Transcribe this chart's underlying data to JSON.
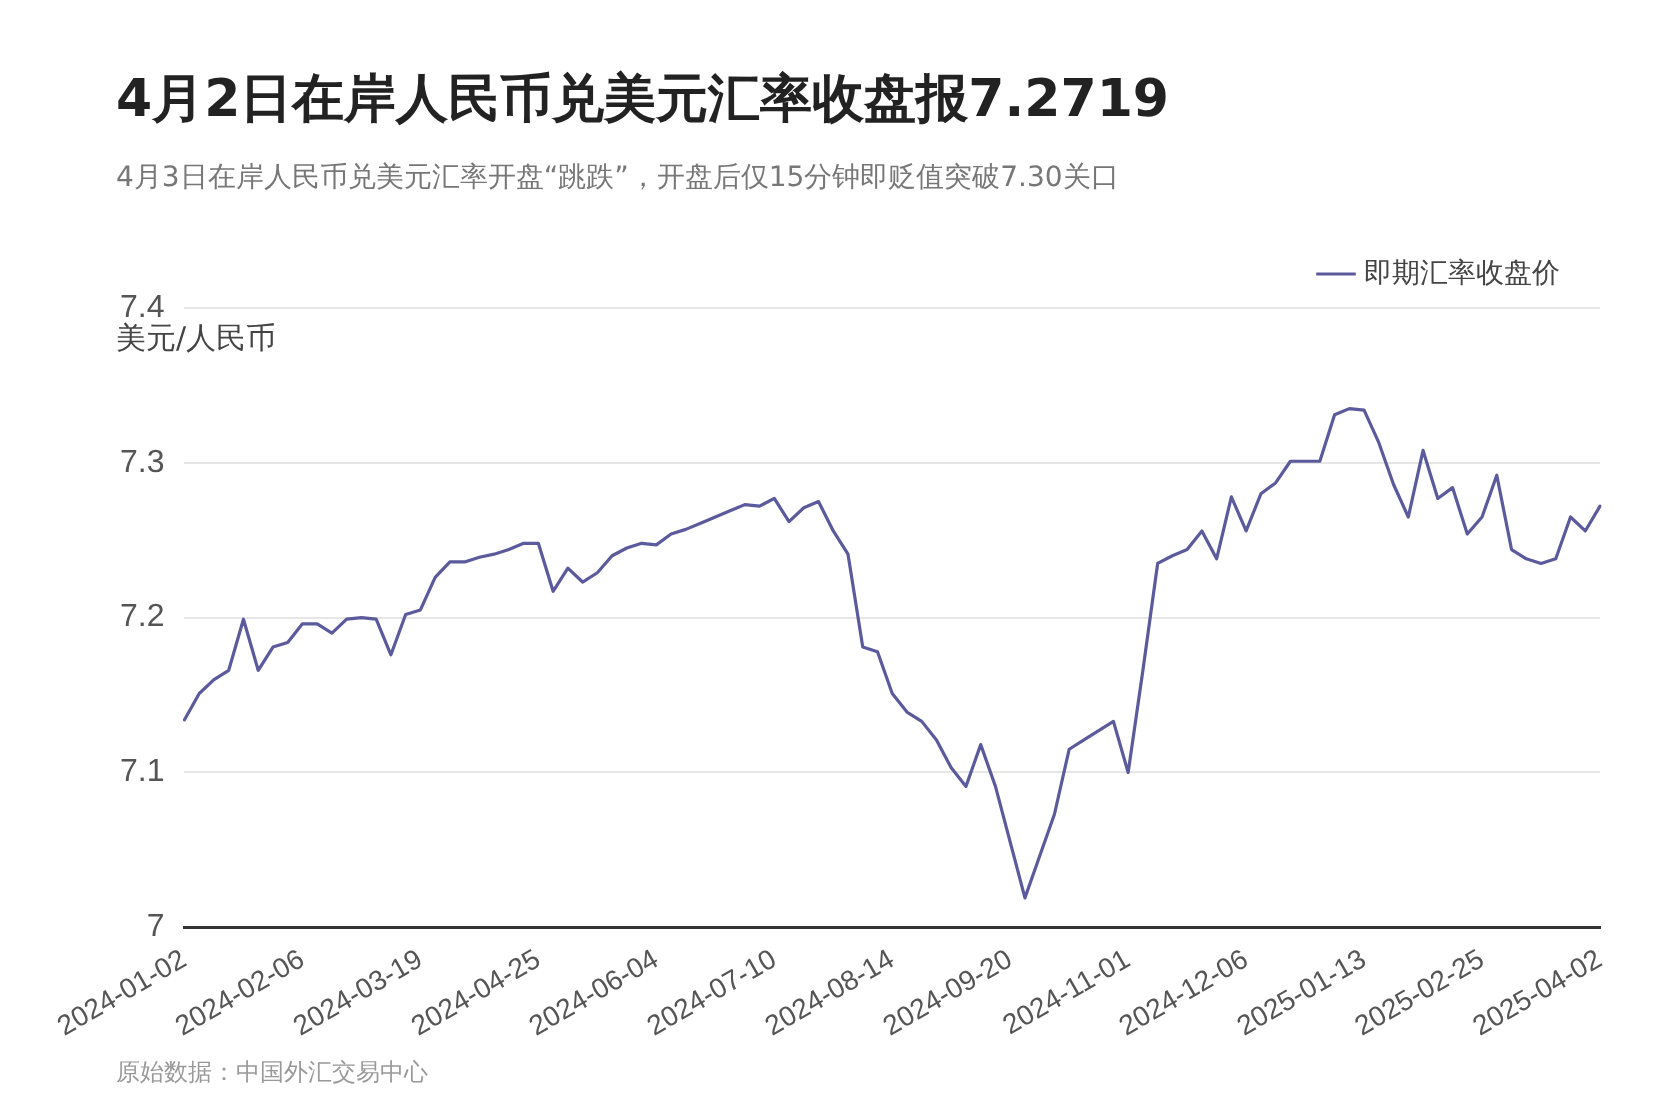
{
  "chart_data": {
    "type": "line",
    "title": "4月2日在岸人民币兑美元汇率收盘报7.2719",
    "subtitle": "4月3日在岸人民币兑美元汇率开盘“跳跌”，开盘后仅15分钟即贬值突破7.30关口",
    "ylabel": "美元/人民币",
    "annotations": [
      "原始数据：中国外汇交易中心"
    ],
    "categories": [
      "2024-01-02",
      null,
      null,
      null,
      null,
      null,
      null,
      null,
      "2024-02-06",
      null,
      null,
      null,
      null,
      null,
      null,
      null,
      "2024-03-19",
      null,
      null,
      null,
      null,
      null,
      null,
      null,
      "2024-04-25",
      null,
      null,
      null,
      null,
      null,
      null,
      null,
      "2024-06-04",
      null,
      null,
      null,
      null,
      null,
      null,
      null,
      "2024-07-10",
      null,
      null,
      null,
      null,
      null,
      null,
      null,
      "2024-08-14",
      null,
      null,
      null,
      null,
      null,
      null,
      null,
      "2024-09-20",
      null,
      null,
      null,
      null,
      null,
      null,
      null,
      "2024-11-01",
      null,
      null,
      null,
      null,
      null,
      null,
      null,
      "2024-12-06",
      null,
      null,
      null,
      null,
      null,
      null,
      null,
      "2025-01-13",
      null,
      null,
      null,
      null,
      null,
      null,
      null,
      "2025-02-25",
      null,
      null,
      null,
      null,
      null,
      null,
      null,
      "2025-04-02"
    ],
    "series": [
      {
        "name": "即期汇率收盘价",
        "color": "#5b5a9c",
        "values": [
          7.134,
          7.151,
          7.16,
          7.166,
          7.199,
          7.166,
          7.181,
          7.184,
          7.196,
          7.196,
          7.19,
          7.199,
          7.2,
          7.199,
          7.176,
          7.202,
          7.205,
          7.226,
          7.236,
          7.236,
          7.239,
          7.241,
          7.244,
          7.248,
          7.248,
          7.217,
          7.232,
          7.223,
          7.229,
          7.24,
          7.245,
          7.248,
          7.247,
          7.254,
          7.257,
          7.261,
          7.265,
          7.269,
          7.273,
          7.272,
          7.277,
          7.262,
          7.271,
          7.275,
          7.256,
          7.241,
          7.181,
          7.178,
          7.151,
          7.139,
          7.133,
          7.121,
          7.103,
          7.091,
          7.118,
          7.091,
          7.055,
          7.019,
          7.046,
          7.073,
          7.115,
          7.121,
          7.127,
          7.133,
          7.1,
          7.166,
          7.235,
          7.24,
          7.244,
          7.256,
          7.238,
          7.278,
          7.256,
          7.28,
          7.287,
          7.301,
          7.301,
          7.301,
          7.331,
          7.335,
          7.334,
          7.313,
          7.286,
          7.265,
          7.308,
          7.277,
          7.284,
          7.254,
          7.265,
          7.292,
          7.244,
          7.238,
          7.235,
          7.238,
          7.265,
          7.256,
          7.272
        ]
      }
    ],
    "ylim": [
      7,
      7.4
    ],
    "yticks": [
      7,
      7.1,
      7.2,
      7.3,
      7.4
    ],
    "grid": "y",
    "legend": "top right",
    "marker": "none",
    "line_style": "solid"
  }
}
